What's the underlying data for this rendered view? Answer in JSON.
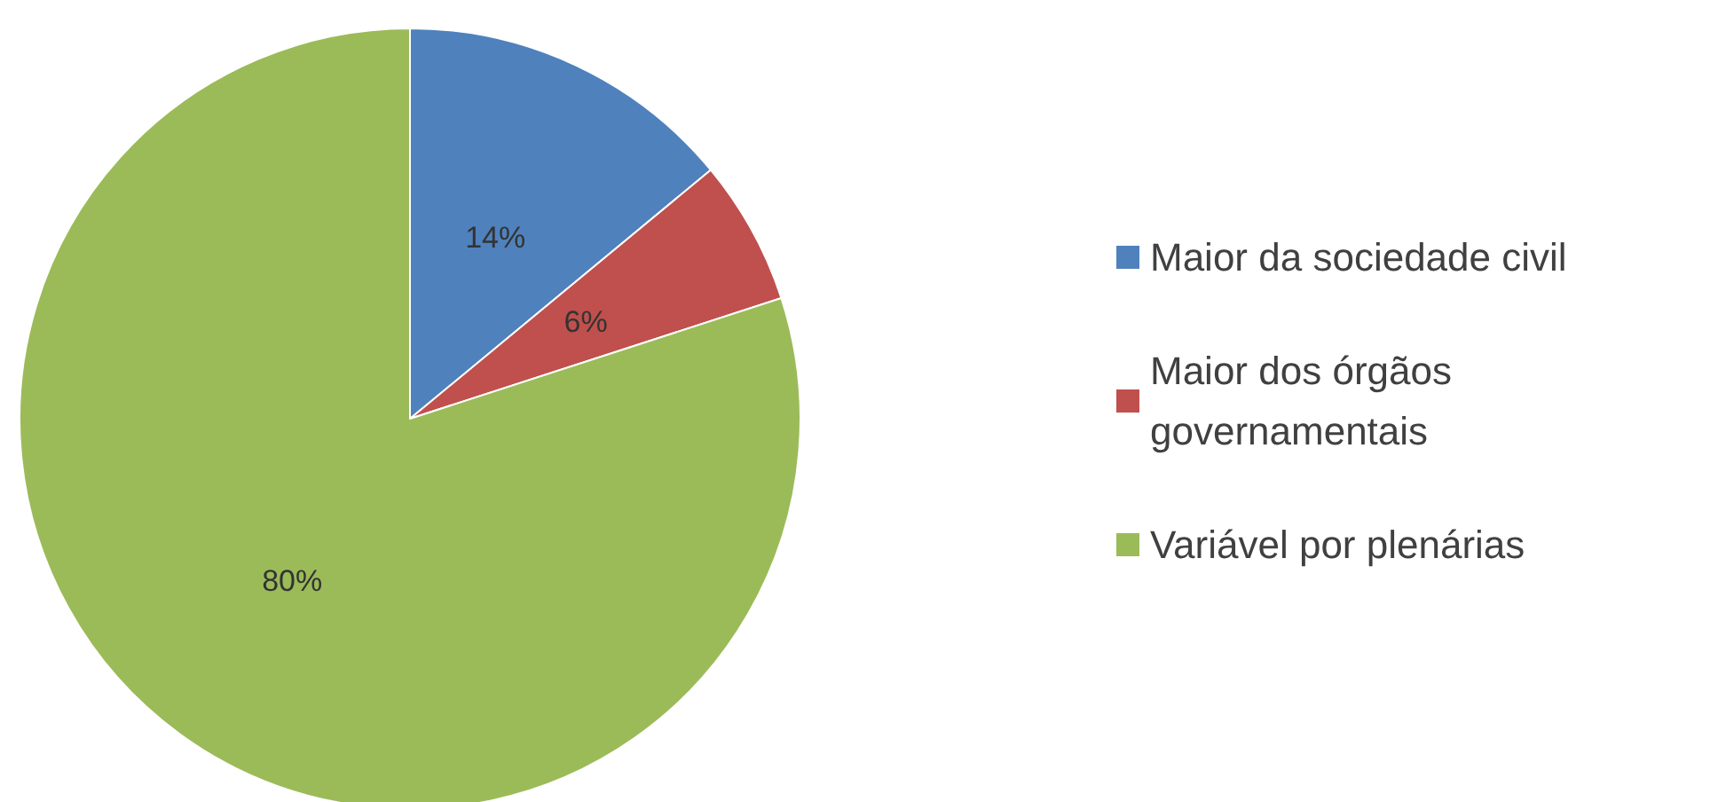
{
  "chart_data": {
    "type": "pie",
    "categories": [
      "Maior da sociedade civil",
      "Maior dos órgãos governamentais",
      "Variável por plenárias"
    ],
    "values": [
      14,
      6,
      80
    ],
    "colors": [
      "#4f81bd",
      "#c0504d",
      "#9bbb59"
    ],
    "value_labels": [
      "14%",
      "6%",
      "80%"
    ],
    "legend": "right"
  }
}
